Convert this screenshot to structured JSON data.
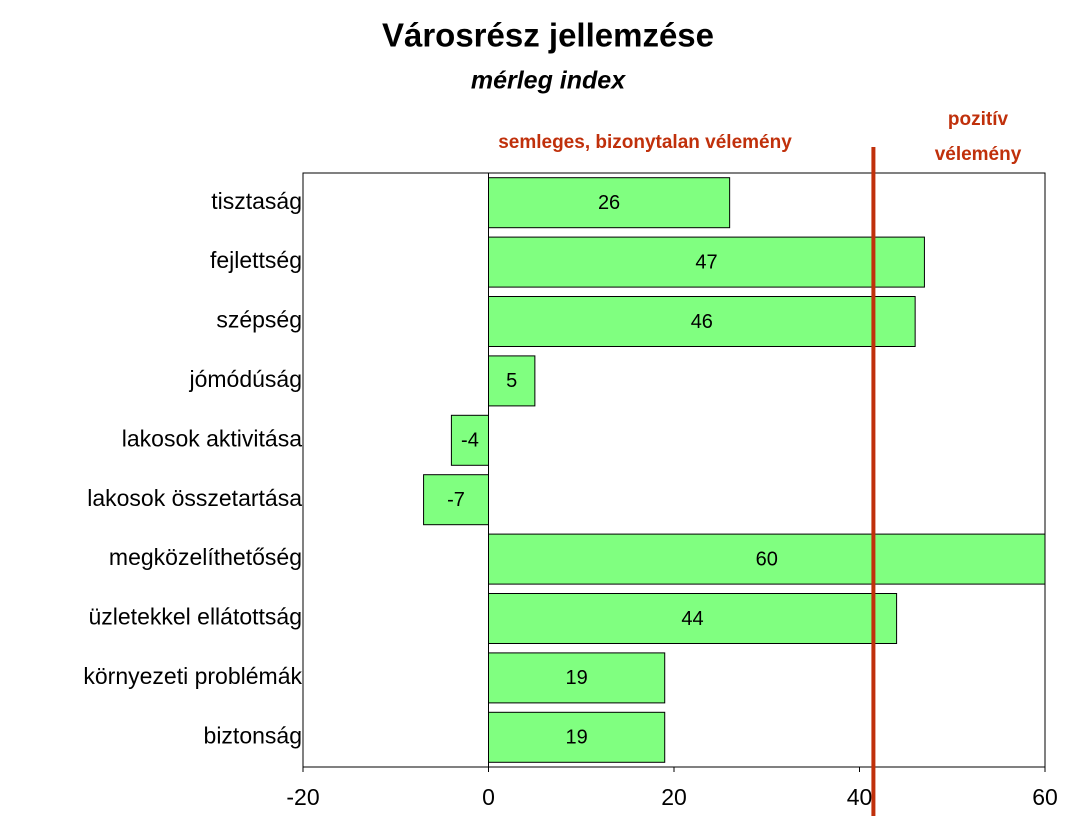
{
  "chart_data": {
    "type": "bar",
    "orientation": "horizontal",
    "title": "Városrész jellemzése",
    "subtitle": "mérleg index",
    "categories": [
      "tisztaság",
      "fejlettség",
      "szépség",
      "jómódúság",
      "lakosok aktivitása",
      "lakosok összetartása",
      "megközelíthetőség",
      "üzletekkel ellátottság",
      "környezeti problémák",
      "biztonság"
    ],
    "values": [
      26,
      47,
      46,
      5,
      -4,
      -7,
      60,
      44,
      19,
      19
    ],
    "color": "#80ff80",
    "xlim": [
      -20,
      60
    ],
    "xticks": [
      -20,
      0,
      20,
      40,
      60
    ],
    "grid": false,
    "reference_line": {
      "value": 41.5,
      "color": "#c0300b"
    },
    "annotations": {
      "neutral": "semleges, bizonytalan vélemény",
      "positive": [
        "pozitív",
        "vélemény"
      ]
    }
  }
}
